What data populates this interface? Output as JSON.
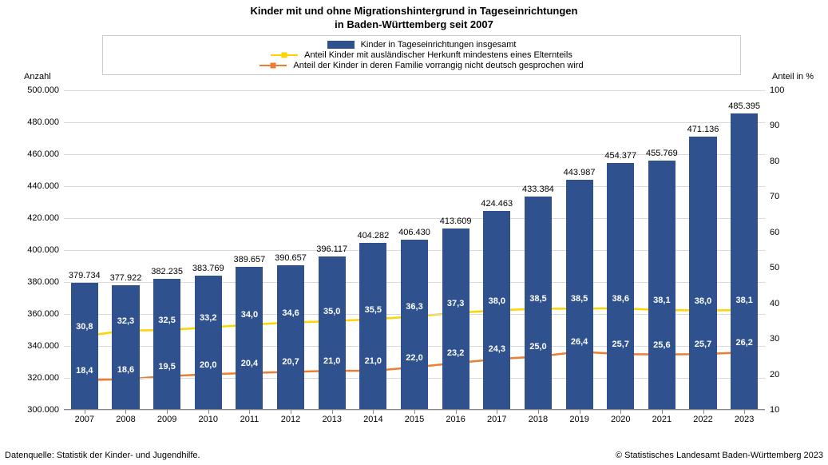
{
  "title_l1": "Kinder mit und ohne Migrationshintergrund in Tageseinrichtungen",
  "title_l2": "in Baden-Württemberg seit 2007",
  "legend": {
    "bars": "Kinder in Tageseinrichtungen insgesamt",
    "yellow": "Anteil Kinder mit ausländischer Herkunft mindestens eines Elternteils",
    "orange": "Anteil der Kinder in deren Familie vorrangig nicht deutsch gesprochen wird"
  },
  "axis_left": "Anzahl",
  "axis_right": "Anteil in %",
  "footer_left": "Datenquelle: Statistik der Kinder- und Jugendhilfe.",
  "footer_right": "© Statistisches Landesamt Baden-Württemberg 2023",
  "chart": {
    "type": "bar+line",
    "years": [
      "2007",
      "2008",
      "2009",
      "2010",
      "2011",
      "2012",
      "2013",
      "2014",
      "2015",
      "2016",
      "2017",
      "2018",
      "2019",
      "2020",
      "2021",
      "2022",
      "2023"
    ],
    "bars": [
      379734,
      377922,
      382235,
      383769,
      389657,
      390657,
      396117,
      404282,
      406430,
      413609,
      424463,
      433384,
      443987,
      454377,
      455769,
      471136,
      485395
    ],
    "bar_labels": [
      "379.734",
      "377.922",
      "382.235",
      "383.769",
      "389.657",
      "390.657",
      "396.117",
      "404.282",
      "406.430",
      "413.609",
      "424.463",
      "433.384",
      "443.987",
      "454.377",
      "455.769",
      "471.136",
      "485.395"
    ],
    "yellow": [
      30.8,
      32.3,
      32.5,
      33.2,
      34.0,
      34.6,
      35.0,
      35.5,
      36.3,
      37.3,
      38.0,
      38.5,
      38.5,
      38.6,
      38.1,
      38.0,
      38.1
    ],
    "yellow_labels": [
      "30,8",
      "32,3",
      "32,5",
      "33,2",
      "34,0",
      "34,6",
      "35,0",
      "35,5",
      "36,3",
      "37,3",
      "38,0",
      "38,5",
      "38,5",
      "38,6",
      "38,1",
      "38,0",
      "38,1"
    ],
    "orange": [
      18.4,
      18.6,
      19.5,
      20.0,
      20.4,
      20.7,
      21.0,
      21.0,
      22.0,
      23.2,
      24.3,
      25.0,
      26.4,
      25.7,
      25.6,
      25.7,
      26.2
    ],
    "orange_labels": [
      "18,4",
      "18,6",
      "19,5",
      "20,0",
      "20,4",
      "20,7",
      "21,0",
      "21,0",
      "22,0",
      "23,2",
      "24,3",
      "25,0",
      "26,4",
      "25,7",
      "25,6",
      "25,7",
      "26,2"
    ],
    "y_left": {
      "min": 300000,
      "max": 500000,
      "step": 20000,
      "labels": [
        "300.000",
        "320.000",
        "340.000",
        "360.000",
        "380.000",
        "400.000",
        "420.000",
        "440.000",
        "460.000",
        "480.000",
        "500.000"
      ]
    },
    "y_right": {
      "min": 10,
      "max": 100,
      "step": 10,
      "labels": [
        "10",
        "20",
        "30",
        "40",
        "50",
        "60",
        "70",
        "80",
        "90",
        "100"
      ]
    },
    "colors": {
      "bar": "#2f528f",
      "yellow": "#ffd400",
      "orange": "#ed7d31",
      "grid": "#d9d9d9",
      "bg": "#ffffff"
    },
    "bar_width": 0.66,
    "line_width": 2.5,
    "marker_size": 7,
    "label_fontsize": 11,
    "title_fontsize": 13
  }
}
